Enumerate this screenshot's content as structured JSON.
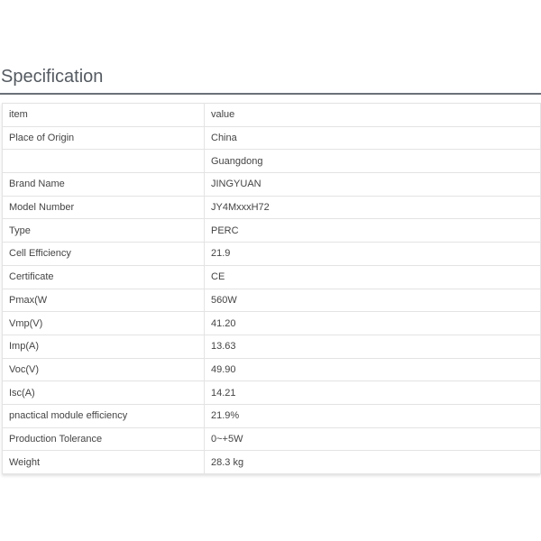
{
  "title": "Specification",
  "header": {
    "item": "item",
    "value": "value"
  },
  "rows": [
    {
      "item": "Place of Origin",
      "value": "China"
    },
    {
      "item": "",
      "value": "Guangdong"
    },
    {
      "item": "Brand Name",
      "value": "JINGYUAN"
    },
    {
      "item": "Model Number",
      "value": "JY4MxxxH72"
    },
    {
      "item": "Type",
      "value": "PERC"
    },
    {
      "item": "Cell Efficiency",
      "value": "21.9"
    },
    {
      "item": "Certificate",
      "value": "CE"
    },
    {
      "item": "Pmax(W",
      "value": "560W"
    },
    {
      "item": "Vmp(V)",
      "value": "41.20"
    },
    {
      "item": "Imp(A)",
      "value": "13.63"
    },
    {
      "item": "Voc(V)",
      "value": "49.90"
    },
    {
      "item": "Isc(A)",
      "value": "14.21"
    },
    {
      "item": "pnactical module efficiency",
      "value": "21.9%"
    },
    {
      "item": "Production Tolerance",
      "value": "0~+5W"
    },
    {
      "item": "Weight",
      "value": "28.3 kg"
    }
  ]
}
